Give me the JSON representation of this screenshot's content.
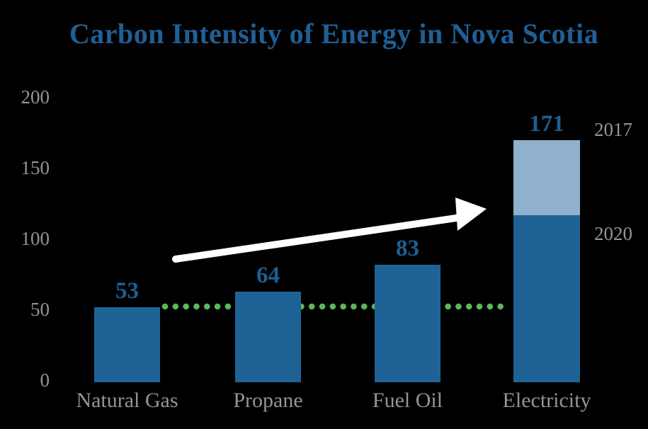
{
  "chart_data": {
    "type": "bar",
    "title": "Carbon Intensity of Energy in Nova Scotia",
    "xlabel": "",
    "ylabel": "",
    "ylim": [
      0,
      200
    ],
    "grid": false,
    "legend_position": "none",
    "yticks": [
      200,
      150,
      100,
      50,
      0
    ],
    "ytick_labels": [
      "200",
      "150",
      "100",
      "50",
      "0"
    ],
    "categories": [
      "Natural Gas",
      "Propane",
      "Fuel Oil",
      "Electricity"
    ],
    "values": [
      53,
      64,
      83,
      171
    ],
    "bars": [
      {
        "category": "Natural Gas",
        "label": "53",
        "total": 53,
        "dark": 53,
        "light": 0
      },
      {
        "category": "Propane",
        "label": "64",
        "total": 64,
        "dark": 64,
        "light": 0
      },
      {
        "category": "Fuel Oil",
        "label": "83",
        "total": 83,
        "dark": 83,
        "light": 0
      },
      {
        "category": "Electricity",
        "label": "171",
        "total": 171,
        "dark": 118,
        "light": 53
      }
    ],
    "annotations": {
      "year_2017": "2017",
      "year_2020": "2020",
      "stack_note": "Electricity bar is stacked: light-blue top = 2017 level (171 total), dark-blue bottom = 2020 level (~118)",
      "guideline_level": 53,
      "guideline_note": "green dotted line at Natural Gas level (53) spanning across to Electricity",
      "arrow_note": "white upward trend arrow from above Natural Gas toward Electricity"
    },
    "colors": {
      "background": "#000000",
      "bar_dark_blue": "#1F6396",
      "bar_light_blue": "#8FB1CE",
      "title_blue": "#205F96",
      "value_label_blue": "#1E5F94",
      "gray_labels": "#949494",
      "green_dots": "#5CB75C",
      "arrow_white": "#FFFFFF"
    }
  }
}
